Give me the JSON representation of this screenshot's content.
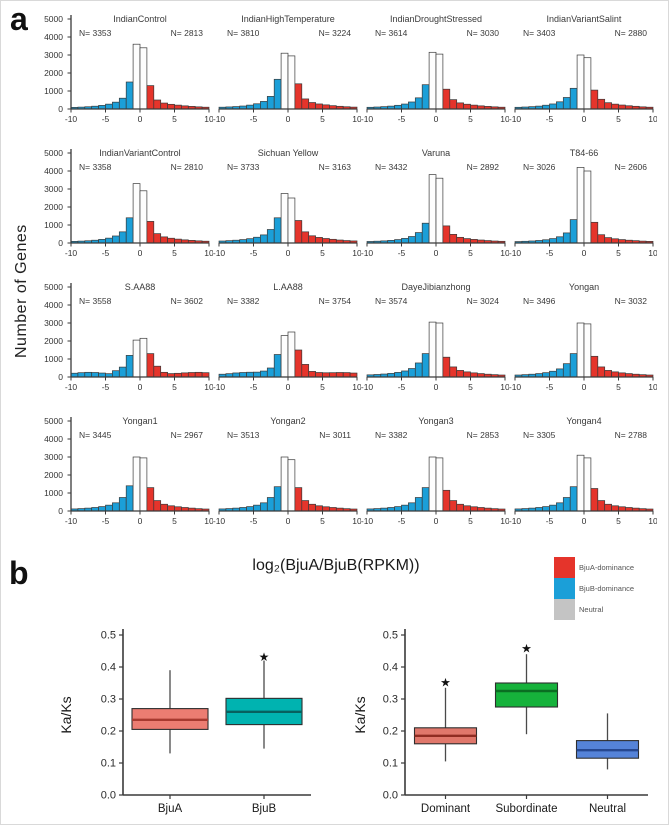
{
  "chart_data": {
    "panel_a": {
      "label": "a",
      "type": "histogram-grid",
      "ylabel": "Number of Genes",
      "xlabel": "log₂(BjuA/BjuB(RPKM))",
      "ylim": [
        0,
        5000
      ],
      "yticks": [
        5000,
        4000,
        3000,
        2000,
        1000,
        0
      ],
      "xticks": [
        -10,
        -5,
        0,
        5,
        10
      ],
      "x_range": [
        -10,
        10
      ],
      "bin_width": 1,
      "colors": {
        "bjua_dominance": "#e5342b",
        "bjub_dominance": "#1b9fd8",
        "neutral_fill": "#fdfdfd",
        "neutral_legend": "#c4c4c4",
        "outline": "#3a3a3a"
      },
      "legend": [
        {
          "label": "BjuA-dominance",
          "color": "#e5342b"
        },
        {
          "label": "BjuB-dominance",
          "color": "#1b9fd8"
        },
        {
          "label": "Neutral",
          "color": "#c4c4c4"
        }
      ],
      "histograms": [
        {
          "title": "IndianControl",
          "n_left": "N= 3353",
          "n_right": "N= 2813",
          "values": [
            90,
            105,
            125,
            155,
            200,
            270,
            380,
            600,
            1500,
            3600,
            3400,
            1300,
            500,
            330,
            260,
            215,
            175,
            145,
            120,
            100
          ]
        },
        {
          "title": "IndianHighTemperature",
          "n_left": "N= 3810",
          "n_right": "N= 3224",
          "values": [
            100,
            115,
            135,
            165,
            215,
            290,
            420,
            700,
            1650,
            3100,
            2950,
            1400,
            560,
            360,
            280,
            230,
            185,
            150,
            125,
            105
          ]
        },
        {
          "title": "IndianDroughtStressed",
          "n_left": "N= 3614",
          "n_right": "N= 3030",
          "values": [
            95,
            110,
            130,
            160,
            205,
            275,
            390,
            620,
            1350,
            3150,
            3050,
            1100,
            520,
            340,
            265,
            215,
            175,
            145,
            120,
            100
          ]
        },
        {
          "title": "IndianVariantSalint",
          "n_left": "N= 3403",
          "n_right": "N= 2880",
          "values": [
            95,
            110,
            130,
            160,
            210,
            280,
            400,
            640,
            1150,
            3000,
            2850,
            1050,
            540,
            350,
            270,
            220,
            180,
            150,
            120,
            100
          ]
        },
        {
          "title": "IndianVariantControl",
          "n_left": "N= 3358",
          "n_right": "N= 2810",
          "values": [
            90,
            105,
            125,
            155,
            200,
            270,
            390,
            620,
            1400,
            3300,
            2900,
            1200,
            520,
            340,
            265,
            215,
            175,
            145,
            120,
            100
          ]
        },
        {
          "title": "Sichuan Yellow",
          "n_left": "N= 3733",
          "n_right": "N= 3163",
          "values": [
            110,
            130,
            155,
            190,
            240,
            320,
            450,
            750,
            1400,
            2750,
            2500,
            1250,
            620,
            400,
            310,
            250,
            205,
            165,
            135,
            115
          ]
        },
        {
          "title": "Varuna",
          "n_left": "N= 3432",
          "n_right": "N= 2892",
          "values": [
            85,
            100,
            118,
            145,
            190,
            255,
            360,
            580,
            1100,
            3800,
            3600,
            950,
            480,
            315,
            245,
            200,
            165,
            135,
            110,
            95
          ]
        },
        {
          "title": "T84-66",
          "n_left": "N= 3026",
          "n_right": "N= 2606",
          "values": [
            80,
            95,
            112,
            140,
            180,
            245,
            345,
            560,
            1300,
            4200,
            4000,
            1150,
            460,
            300,
            235,
            190,
            155,
            130,
            105,
            90
          ]
        },
        {
          "title": "S.AA88",
          "n_left": "N= 3558",
          "n_right": "N= 3602",
          "values": [
            210,
            240,
            260,
            250,
            220,
            185,
            350,
            550,
            1200,
            2050,
            2150,
            1300,
            600,
            260,
            190,
            205,
            230,
            250,
            260,
            240
          ]
        },
        {
          "title": "L.AA88",
          "n_left": "N= 3382",
          "n_right": "N= 3754",
          "values": [
            155,
            185,
            225,
            250,
            265,
            270,
            330,
            500,
            1250,
            2300,
            2500,
            1500,
            700,
            310,
            250,
            235,
            240,
            250,
            245,
            220
          ]
        },
        {
          "title": "DayeJibianzhong",
          "n_left": "N= 3574",
          "n_right": "N= 3024",
          "values": [
            120,
            140,
            165,
            200,
            255,
            335,
            470,
            780,
            1300,
            3050,
            3000,
            1100,
            560,
            365,
            285,
            230,
            190,
            155,
            130,
            110
          ]
        },
        {
          "title": "Yongan",
          "n_left": "N= 3496",
          "n_right": "N= 3032",
          "values": [
            110,
            130,
            155,
            190,
            240,
            320,
            450,
            740,
            1300,
            3000,
            2950,
            1150,
            560,
            365,
            285,
            230,
            190,
            155,
            130,
            110
          ]
        },
        {
          "title": "Yongan1",
          "n_left": "N= 3445",
          "n_right": "N= 2967",
          "values": [
            115,
            135,
            160,
            195,
            245,
            325,
            455,
            750,
            1400,
            3000,
            2950,
            1300,
            580,
            375,
            290,
            235,
            195,
            160,
            130,
            110
          ]
        },
        {
          "title": "Yongan2",
          "n_left": "N= 3513",
          "n_right": "N= 3011",
          "values": [
            115,
            135,
            160,
            195,
            245,
            325,
            455,
            750,
            1350,
            3000,
            2850,
            1300,
            580,
            375,
            290,
            235,
            195,
            160,
            130,
            110
          ]
        },
        {
          "title": "Yongan3",
          "n_left": "N= 3382",
          "n_right": "N= 2853",
          "values": [
            115,
            135,
            160,
            195,
            245,
            325,
            455,
            750,
            1300,
            3000,
            2950,
            1150,
            580,
            375,
            290,
            235,
            195,
            160,
            130,
            110
          ]
        },
        {
          "title": "Yongan4",
          "n_left": "N= 3305",
          "n_right": "N= 2788",
          "values": [
            115,
            135,
            160,
            195,
            245,
            325,
            455,
            750,
            1350,
            3100,
            2950,
            1250,
            580,
            375,
            290,
            235,
            195,
            160,
            130,
            110
          ]
        }
      ]
    },
    "panel_b": {
      "label": "b",
      "type": "box",
      "significance_marker": "★",
      "plots": [
        {
          "name": "ka-ks-by-subgenome",
          "ylabel": "Ka/Ks",
          "ylim": [
            0,
            0.5
          ],
          "yticks": [
            "0.5",
            "0.4",
            "0.3",
            "0.2",
            "0.1",
            "0.0"
          ],
          "categories": [
            "BjuA",
            "BjuB"
          ],
          "boxes": [
            {
              "category": "BjuA",
              "low": 0.13,
              "q1": 0.205,
              "median": 0.235,
              "q3": 0.27,
              "high": 0.39,
              "fill": "#ec7d72",
              "median_color": "#a83a30",
              "star": false
            },
            {
              "category": "BjuB",
              "low": 0.145,
              "q1": 0.22,
              "median": 0.26,
              "q3": 0.302,
              "high": 0.42,
              "fill": "#00b3b0",
              "median_color": "#07615f",
              "star": true,
              "star_y": 0.432
            }
          ]
        },
        {
          "name": "ka-ks-by-dominance",
          "ylabel": "Ka/Ks",
          "ylim": [
            0,
            0.5
          ],
          "yticks": [
            "0.5",
            "0.4",
            "0.3",
            "0.2",
            "0.1",
            "0.0"
          ],
          "categories": [
            "Dominant",
            "Subordinate",
            "Neutral"
          ],
          "boxes": [
            {
              "category": "Dominant",
              "low": 0.105,
              "q1": 0.16,
              "median": 0.185,
              "q3": 0.21,
              "high": 0.335,
              "fill": "#e0776b",
              "median_color": "#8f2c22",
              "star": true,
              "star_y": 0.352
            },
            {
              "category": "Subordinate",
              "low": 0.19,
              "q1": 0.275,
              "median": 0.325,
              "q3": 0.35,
              "high": 0.44,
              "fill": "#16b23b",
              "median_color": "#0a6e22",
              "star": true,
              "star_y": 0.458
            },
            {
              "category": "Neutral",
              "low": 0.08,
              "q1": 0.115,
              "median": 0.14,
              "q3": 0.17,
              "high": 0.255,
              "fill": "#5583d8",
              "median_color": "#26478f",
              "star": false
            }
          ]
        }
      ]
    }
  }
}
